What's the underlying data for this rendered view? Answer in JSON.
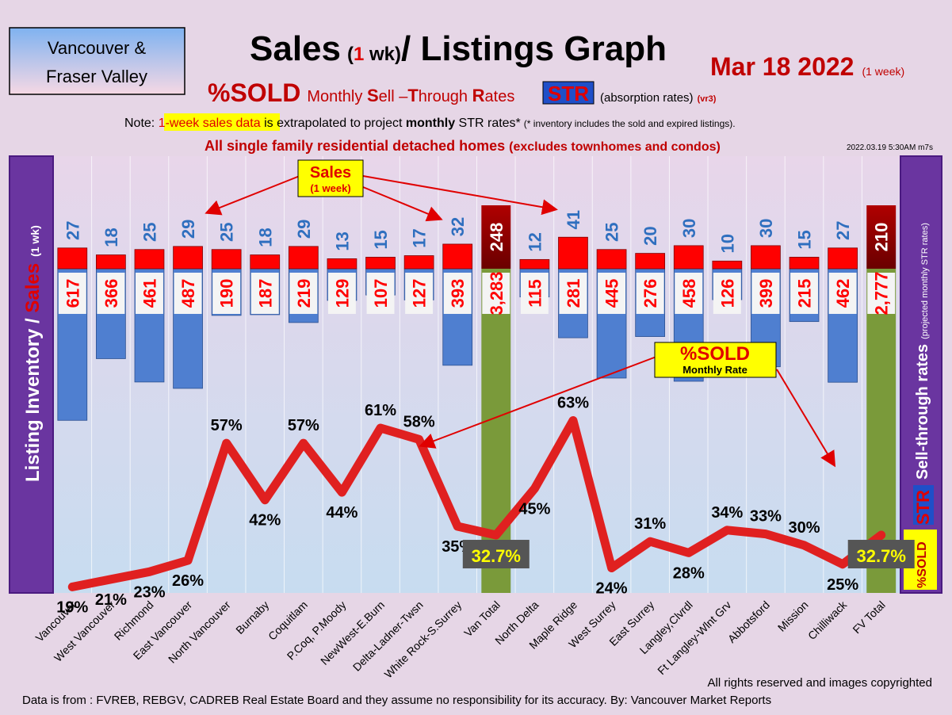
{
  "region_box": {
    "line1": "Vancouver &",
    "line2": "Fraser Valley"
  },
  "title": {
    "part1": "Sales",
    "paren_open": "(",
    "paren_num": "1",
    "paren_rest": " wk)",
    "part2": "/ Listings Graph"
  },
  "date": {
    "main": "Mar  18  2022",
    "suffix": "(1 week)"
  },
  "subtitle": {
    "sold": "%SOLD",
    "m": "Monthly ",
    "S": "S",
    "ell": "ell –",
    "T": "T",
    "hrough": "hrough ",
    "R": "R",
    "ates": "ates",
    "str": "STR",
    "absorption": "(absorption rates)",
    "version": "(vr3)"
  },
  "note": {
    "prefix": "Note: ",
    "highlight": "1-week sales data",
    "mid": " is extrapolated to project ",
    "bold": "monthly",
    "rest": " STR rates*",
    "small": "(* inventory includes the sold and expired listings)."
  },
  "scope": {
    "bold1": "All single family residential detached homes",
    "bold2": "(excludes townhomes and condos)"
  },
  "timestamp": "2022.03.19 5:30AM m7s",
  "left_axis": {
    "inventory": "Listing Inventory / ",
    "sales": "Sales",
    "wk": "(1 wk)"
  },
  "right_axis": {
    "main": "Sell-through rates",
    "small": "(projected monthly STR rates)",
    "sold": "%SOLD",
    "str": "STR"
  },
  "callouts": {
    "sales_title": "Sales",
    "sales_sub": "(1 week)",
    "sold_title": "%SOLD",
    "sold_sub": "Monthly Rate"
  },
  "footer": {
    "rights": "All rights reserved and  images copyrighted",
    "source": "Data is from : FVREB, REBGV, CADREB Real Estate Board and they assume no responsibility for its accuracy. By: Vancouver Market Reports"
  },
  "colors": {
    "sales_bar": "#ff0000",
    "inventory_bar": "#4f7fd0",
    "total_bar": "#7a9a3a",
    "str_line": "#e02020",
    "sales_label": "#2f6fbf",
    "inventory_label": "#ff0000",
    "frame": "#7030a0"
  },
  "chart_data": {
    "type": "bar",
    "categories": [
      "Vancouver",
      "West Vancouver",
      "Richmond",
      "East Vancouver",
      "North Vancouver",
      "Burnaby",
      "Coquitlam",
      "P.Coq, P.Moody",
      "NewWest-E.Burn",
      "Delta-Ladner-Twsn",
      "White Rock-S.Surrey",
      "Van Total",
      "North Delta",
      "Maple Ridge",
      "West Surrey",
      "East Surrey",
      "Langley,Clvrdl",
      "Ft Langley-Wlnt Grv",
      "Abbotsford",
      "Mission",
      "Chilliwack",
      "FV Total"
    ],
    "sales_1wk": [
      27,
      18,
      25,
      29,
      25,
      18,
      29,
      13,
      15,
      17,
      32,
      248,
      12,
      41,
      25,
      20,
      30,
      10,
      30,
      15,
      27,
      210
    ],
    "listing_inventory": [
      "617",
      "366",
      "461",
      "487",
      "190",
      "187",
      "219",
      "129",
      "107",
      "127",
      "393",
      "3,283",
      "115",
      "281",
      "445",
      "276",
      "458",
      "126",
      "399",
      "215",
      "462",
      "2,777"
    ],
    "listing_inventory_values": [
      617,
      366,
      461,
      487,
      190,
      187,
      219,
      129,
      107,
      127,
      393,
      3283,
      115,
      281,
      445,
      276,
      458,
      126,
      399,
      215,
      462,
      2777
    ],
    "str_percent": [
      19,
      21,
      23,
      26,
      57,
      42,
      57,
      44,
      61,
      58,
      35,
      32.7,
      45,
      63,
      24,
      31,
      28,
      34,
      33,
      30,
      25,
      32.7
    ],
    "str_labels": [
      "19%",
      "21%",
      "23%",
      "26%",
      "57%",
      "42%",
      "57%",
      "44%",
      "61%",
      "58%",
      "35%",
      "32.7%",
      "45%",
      "63%",
      "24%",
      "31%",
      "28%",
      "34%",
      "33%",
      "30%",
      "25%",
      "32.7%"
    ],
    "totals": [
      "Van Total",
      "FV Total"
    ]
  }
}
